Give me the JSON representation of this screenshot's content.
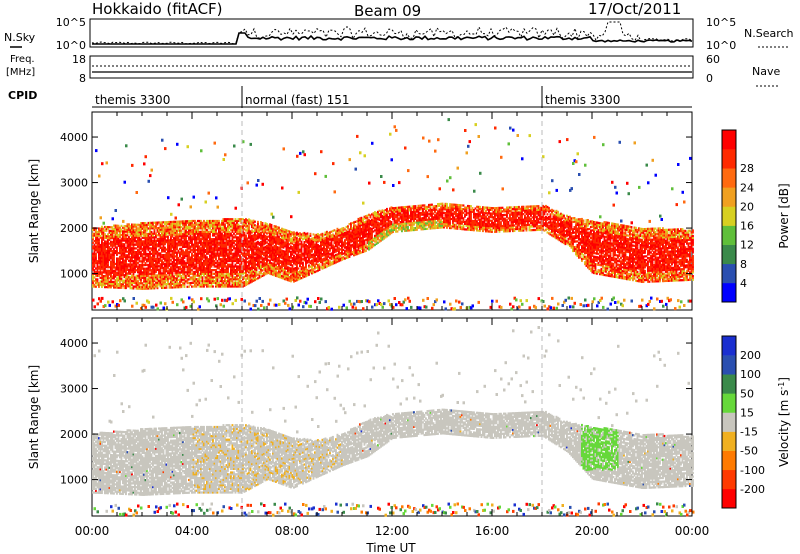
{
  "header": {
    "site": "Hokkaido (fitACF)",
    "beam": "Beam 09",
    "date": "17/Oct/2011"
  },
  "left_labels": {
    "nsky": "N.Sky",
    "freq_line1": "Freq.",
    "freq_line2": "[MHz]",
    "cpid": "CPID"
  },
  "right_labels": {
    "nsearch": "N.Search",
    "nave": "Nave"
  },
  "counts_panel": {
    "left_ticks": [
      "10^5",
      "10^0"
    ],
    "right_ticks": [
      "10^5",
      "10^0"
    ]
  },
  "freq_panel": {
    "left_ticks": [
      "18",
      "8"
    ],
    "right_ticks": [
      "60",
      "0"
    ]
  },
  "cpid_segments": [
    {
      "label": "themis 3300",
      "start": 0,
      "end": 6
    },
    {
      "label": "normal (fast) 151",
      "start": 6,
      "end": 18
    },
    {
      "label": "themis 3300",
      "start": 18,
      "end": 24
    }
  ],
  "chart_data": [
    {
      "type": "heatmap",
      "panel": "power",
      "ylabel": "Slant Range [km]",
      "y_ticks": [
        "1000",
        "2000",
        "3000",
        "4000"
      ],
      "ylim": [
        200,
        4550
      ],
      "xlim": [
        0,
        24
      ],
      "x_ticks": [
        "00:00",
        "04:00",
        "08:00",
        "12:00",
        "16:00",
        "20:00",
        "00:00"
      ],
      "colorbar": {
        "label": "Power [dB]",
        "ticks": [
          "4",
          "8",
          "12",
          "16",
          "20",
          "24",
          "28"
        ],
        "colors": [
          "#0000ff",
          "#2a4fb0",
          "#3a8a4a",
          "#5fbf3a",
          "#d7d021",
          "#f0a020",
          "#ff6a10",
          "#ff2a00",
          "#ff0000"
        ]
      },
      "bands": [
        {
          "t": 0,
          "lo": 700,
          "hi": 2000
        },
        {
          "t": 2,
          "lo": 650,
          "hi": 2100
        },
        {
          "t": 4,
          "lo": 700,
          "hi": 2150
        },
        {
          "t": 6,
          "lo": 700,
          "hi": 2200
        },
        {
          "t": 7,
          "lo": 1000,
          "hi": 2100
        },
        {
          "t": 8,
          "lo": 800,
          "hi": 1900
        },
        {
          "t": 9,
          "lo": 1050,
          "hi": 1850
        },
        {
          "t": 10,
          "lo": 1300,
          "hi": 2000
        },
        {
          "t": 11,
          "lo": 1500,
          "hi": 2300
        },
        {
          "t": 12,
          "lo": 1900,
          "hi": 2450
        },
        {
          "t": 13,
          "lo": 1950,
          "hi": 2500
        },
        {
          "t": 14,
          "lo": 2000,
          "hi": 2550
        },
        {
          "t": 16,
          "lo": 1900,
          "hi": 2450
        },
        {
          "t": 18,
          "lo": 1950,
          "hi": 2500
        },
        {
          "t": 19,
          "lo": 1600,
          "hi": 2250
        },
        {
          "t": 20,
          "lo": 1000,
          "hi": 2150
        },
        {
          "t": 22,
          "lo": 800,
          "hi": 2000
        },
        {
          "t": 24,
          "lo": 850,
          "hi": 1950
        }
      ]
    },
    {
      "type": "heatmap",
      "panel": "velocity",
      "ylabel": "Slant Range [km]",
      "y_ticks": [
        "1000",
        "2000",
        "3000",
        "4000"
      ],
      "ylim": [
        200,
        4550
      ],
      "xlim": [
        0,
        24
      ],
      "x_ticks": [
        "00:00",
        "04:00",
        "08:00",
        "12:00",
        "16:00",
        "20:00",
        "00:00"
      ],
      "xlabel": "Time UT",
      "colorbar": {
        "label": "Velocity [m s",
        "label_sup": "-1",
        "label_end": "]",
        "ticks": [
          "200",
          "100",
          "50",
          "15",
          "-15",
          "-50",
          "-100",
          "-200"
        ],
        "colors": [
          "#1a2fd0",
          "#2a4fb0",
          "#3a8a4a",
          "#66d83a",
          "#c8c6be",
          "#f0b020",
          "#ff7a00",
          "#ff3a00",
          "#ff0000"
        ]
      },
      "bands": [
        {
          "t": 0,
          "lo": 700,
          "hi": 2000
        },
        {
          "t": 2,
          "lo": 650,
          "hi": 2100
        },
        {
          "t": 4,
          "lo": 700,
          "hi": 2150
        },
        {
          "t": 6,
          "lo": 700,
          "hi": 2200
        },
        {
          "t": 7,
          "lo": 1000,
          "hi": 2100
        },
        {
          "t": 8,
          "lo": 800,
          "hi": 1900
        },
        {
          "t": 9,
          "lo": 1050,
          "hi": 1850
        },
        {
          "t": 10,
          "lo": 1300,
          "hi": 2000
        },
        {
          "t": 11,
          "lo": 1500,
          "hi": 2300
        },
        {
          "t": 12,
          "lo": 1900,
          "hi": 2450
        },
        {
          "t": 13,
          "lo": 1950,
          "hi": 2500
        },
        {
          "t": 14,
          "lo": 2000,
          "hi": 2550
        },
        {
          "t": 16,
          "lo": 1900,
          "hi": 2450
        },
        {
          "t": 18,
          "lo": 1950,
          "hi": 2500
        },
        {
          "t": 19,
          "lo": 1600,
          "hi": 2250
        },
        {
          "t": 20,
          "lo": 1000,
          "hi": 2150
        },
        {
          "t": 22,
          "lo": 800,
          "hi": 2000
        },
        {
          "t": 24,
          "lo": 850,
          "hi": 1950
        }
      ]
    }
  ]
}
